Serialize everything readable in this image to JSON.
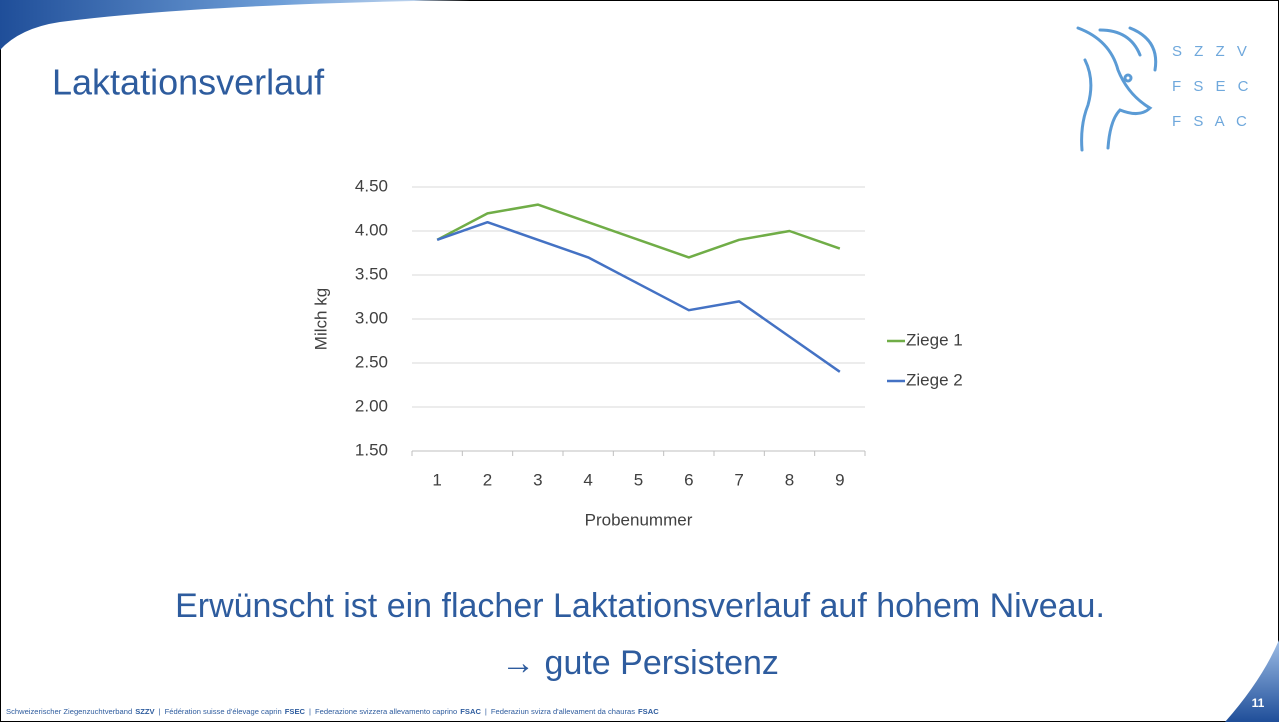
{
  "slide": {
    "title": "Laktationsverlauf",
    "logo_lines": [
      "S Z Z V",
      "F S E C",
      "F S A C"
    ],
    "body": [
      "Erwünscht ist ein flacher Laktationsverlauf auf hohem Niveau.",
      "→ gute Persistenz"
    ],
    "footer": {
      "separator": "|",
      "items": [
        {
          "text": "Schweizerischer Ziegenzuchtverband",
          "abbr": "SZZV"
        },
        {
          "text": "Fédération suisse d'élevage caprin",
          "abbr": "FSEC"
        },
        {
          "text": "Federazione svizzera allevamento caprino",
          "abbr": "FSAC"
        },
        {
          "text": "Federaziun svizra d'allevament da chauras",
          "abbr": "FSAC"
        }
      ]
    },
    "page_number": "11"
  },
  "chart_data": {
    "type": "line",
    "x_label": "Probenummer",
    "y_label": "Milch kg",
    "categories": [
      "1",
      "2",
      "3",
      "4",
      "5",
      "6",
      "7",
      "8",
      "9"
    ],
    "series": [
      {
        "name": "Ziege 1",
        "color": "#70ad47",
        "values": [
          3.9,
          4.2,
          4.3,
          4.1,
          3.9,
          3.7,
          3.9,
          4.0,
          3.8
        ]
      },
      {
        "name": "Ziege 2",
        "color": "#4472c4",
        "values": [
          3.9,
          4.1,
          3.9,
          3.7,
          3.4,
          3.1,
          3.2,
          2.8,
          2.4
        ]
      }
    ],
    "ylim": [
      1.5,
      4.5
    ],
    "yticks": [
      {
        "value": 1.5,
        "label": "1.50"
      },
      {
        "value": 2,
        "label": "2.00"
      },
      {
        "value": 2.5,
        "label": "2.50"
      },
      {
        "value": 3,
        "label": "3.00"
      },
      {
        "value": 3.5,
        "label": "3.50"
      },
      {
        "value": 4,
        "label": "4.00"
      },
      {
        "value": 4.5,
        "label": "4.50"
      }
    ],
    "grid": true,
    "legend": "right"
  }
}
